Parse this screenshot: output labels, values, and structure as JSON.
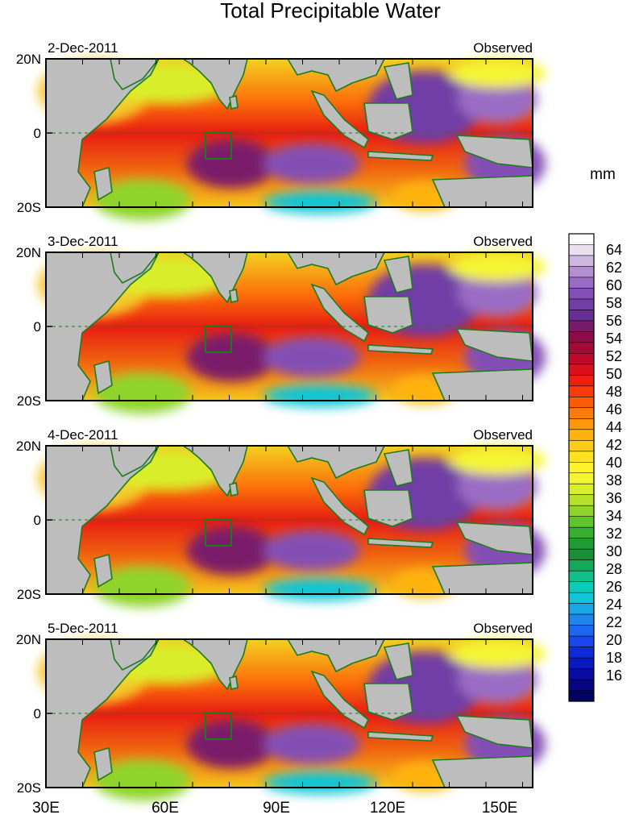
{
  "title": "Total Precipitable Water",
  "units": "mm",
  "panels": [
    {
      "date": "2-Dec-2011",
      "label": "Observed"
    },
    {
      "date": "3-Dec-2011",
      "label": "Observed"
    },
    {
      "date": "4-Dec-2011",
      "label": "Observed"
    },
    {
      "date": "5-Dec-2011",
      "label": "Observed"
    }
  ],
  "lat_ticks": [
    "20N",
    "0",
    "20S"
  ],
  "lon_ticks": [
    "30E",
    "60E",
    "90E",
    "120E",
    "150E"
  ],
  "colorbar": {
    "labels": [
      "64",
      "62",
      "60",
      "58",
      "56",
      "54",
      "52",
      "50",
      "48",
      "46",
      "44",
      "42",
      "40",
      "38",
      "36",
      "34",
      "32",
      "30",
      "28",
      "26",
      "24",
      "22",
      "20",
      "18",
      "16"
    ],
    "colors": [
      "#fdfcfd",
      "#e8dff0",
      "#cdb6e0",
      "#b28fd1",
      "#9a6cc4",
      "#8450b5",
      "#713ea6",
      "#662f91",
      "#7a1a6a",
      "#8e0c4a",
      "#a30a35",
      "#c0082a",
      "#dc0f1e",
      "#f01d10",
      "#fb3a0a",
      "#fd5a08",
      "#ff7a0a",
      "#ff970d",
      "#ffb310",
      "#ffcc18",
      "#ffe21e",
      "#fff22a",
      "#f4f531",
      "#d9ee2a",
      "#b6e12a",
      "#8ed42c",
      "#5ec32c",
      "#35b030",
      "#1f9c35",
      "#189037",
      "#14a85a",
      "#10c289",
      "#0ccbb8",
      "#11c4d8",
      "#1aa6e6",
      "#1f86ef",
      "#1d66f2",
      "#1846e8",
      "#0f2bd9",
      "#0a19c0",
      "#0a0aa4",
      "#050585",
      "#02025f"
    ]
  }
}
